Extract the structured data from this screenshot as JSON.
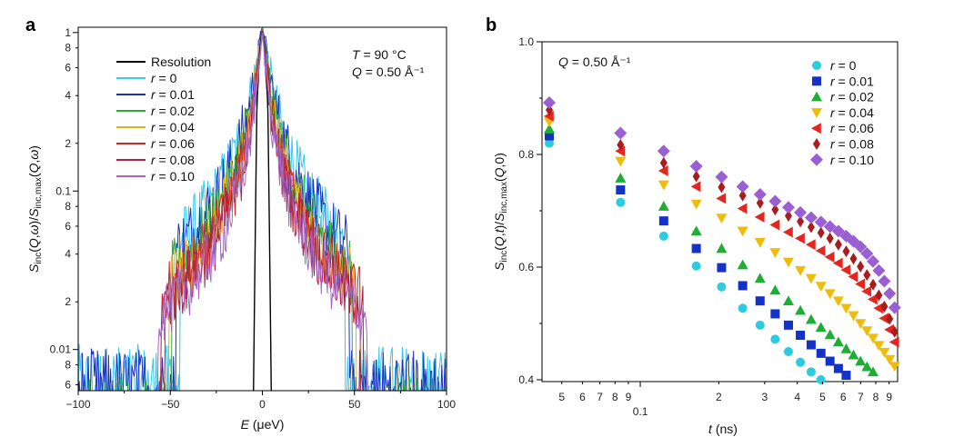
{
  "chart_data": [
    {
      "panel": "a",
      "type": "line",
      "title": "",
      "xlabel": "E (μeV)",
      "ylabel": "S_inc(Q,ω)/S_inc,max(Q,ω)",
      "xlim": [
        -100,
        100
      ],
      "ylim": [
        0.0055,
        1.08
      ],
      "yscale": "log",
      "grid": false,
      "x_ticks": [
        -100,
        -50,
        0,
        50,
        100
      ],
      "x_tick_labels": [
        "−100",
        "−50",
        "0",
        "50",
        "100"
      ],
      "y_major_ticks": [
        0.01,
        0.1,
        1
      ],
      "y_major_labels": [
        "0.01",
        "0.1",
        "1"
      ],
      "y_minor_ticks": [
        0.006,
        0.008,
        0.02,
        0.04,
        0.06,
        0.08,
        0.2,
        0.4,
        0.6,
        0.8
      ],
      "y_minor_labels": [
        "6",
        "8",
        "2",
        "4",
        "6",
        "8",
        "2",
        "4",
        "6",
        "8"
      ],
      "annotations": {
        "temperature": "T = 90 °C",
        "q": "Q = 0.50 Å⁻¹"
      },
      "legend_position": "upper-left",
      "series": [
        {
          "name": "Resolution",
          "color": "#000000",
          "hwhm": 1.6,
          "floor": 1e-05,
          "noise": 0
        },
        {
          "name": "r = 0",
          "color": "#38c8e8",
          "hwhm": 4.6,
          "floor": 0.0035,
          "noise": 0.55
        },
        {
          "name": "r = 0.01",
          "color": "#1c2fbd",
          "hwhm": 4.4,
          "floor": 0.0033,
          "noise": 0.55
        },
        {
          "name": "r = 0.02",
          "color": "#2fa83a",
          "hwhm": 3.7,
          "floor": 0.0022,
          "noise": 0.5
        },
        {
          "name": "r = 0.04",
          "color": "#e2b318",
          "hwhm": 3.3,
          "floor": 0.0018,
          "noise": 0.5
        },
        {
          "name": "r = 0.06",
          "color": "#cc2a22",
          "hwhm": 3.0,
          "floor": 0.0014,
          "noise": 0.5
        },
        {
          "name": "r = 0.08",
          "color": "#b02040",
          "hwhm": 2.8,
          "floor": 0.0012,
          "noise": 0.5
        },
        {
          "name": "r = 0.10",
          "color": "#a468c4",
          "hwhm": 2.6,
          "floor": 0.001,
          "noise": 0.5
        }
      ]
    },
    {
      "panel": "b",
      "type": "scatter",
      "title": "",
      "xlabel": "t (ns)",
      "ylabel": "S_inc(Q,t)/S_inc,max(Q,0)",
      "xlim": [
        0.042,
        0.97
      ],
      "ylim": [
        0.39,
        1.0
      ],
      "xscale": "log",
      "grid": false,
      "x_major_ticks": [
        0.1
      ],
      "x_major_labels": [
        "0.1"
      ],
      "x_minor_ticks": [
        0.05,
        0.06,
        0.07,
        0.08,
        0.09,
        0.2,
        0.3,
        0.4,
        0.5,
        0.6,
        0.7,
        0.8,
        0.9
      ],
      "x_minor_labels": [
        "5",
        "6",
        "7",
        "8",
        "9",
        "2",
        "3",
        "4",
        "5",
        "6",
        "7",
        "8",
        "9"
      ],
      "y_ticks": [
        0.4,
        0.6,
        0.8,
        1.0
      ],
      "y_tick_labels": [
        "0.4",
        "0.6",
        "0.8",
        "1.0"
      ],
      "annotations": {
        "q": "Q = 0.50 Å⁻¹"
      },
      "legend_position": "upper-right",
      "x": [
        0.042,
        0.084,
        0.123,
        0.164,
        0.205,
        0.247,
        0.288,
        0.329,
        0.37,
        0.411,
        0.452,
        0.493,
        0.534,
        0.575,
        0.616,
        0.657,
        0.699,
        0.74,
        0.781,
        0.822,
        0.863,
        0.904,
        0.945
      ],
      "series": [
        {
          "name": "r = 0",
          "marker": "circle",
          "color": "#2ccce0",
          "values": [
            0.82,
            0.715,
            0.655,
            0.602,
            0.565,
            0.527,
            0.497,
            0.472,
            0.45,
            0.431,
            0.414,
            0.4
          ]
        },
        {
          "name": "r = 0.01",
          "marker": "square",
          "color": "#1431c8",
          "values": [
            0.833,
            0.737,
            0.682,
            0.633,
            0.599,
            0.567,
            0.54,
            0.517,
            0.497,
            0.479,
            0.462,
            0.447,
            0.433,
            0.42,
            0.408
          ]
        },
        {
          "name": "r = 0.02",
          "marker": "triangle-up",
          "color": "#1fae35",
          "values": [
            0.845,
            0.758,
            0.708,
            0.664,
            0.633,
            0.604,
            0.58,
            0.559,
            0.54,
            0.523,
            0.507,
            0.493,
            0.48,
            0.467,
            0.455,
            0.444,
            0.433,
            0.423,
            0.414
          ]
        },
        {
          "name": "r = 0.04",
          "marker": "triangle-down",
          "color": "#efbc0a",
          "values": [
            0.858,
            0.788,
            0.746,
            0.712,
            0.687,
            0.664,
            0.644,
            0.626,
            0.609,
            0.594,
            0.58,
            0.566,
            0.553,
            0.54,
            0.527,
            0.514,
            0.5,
            0.487,
            0.474,
            0.461,
            0.449,
            0.436,
            0.424
          ]
        },
        {
          "name": "r = 0.06",
          "marker": "triangle-left",
          "color": "#e32620",
          "values": [
            0.868,
            0.806,
            0.771,
            0.743,
            0.722,
            0.704,
            0.689,
            0.675,
            0.662,
            0.651,
            0.64,
            0.629,
            0.618,
            0.607,
            0.595,
            0.583,
            0.57,
            0.557,
            0.543,
            0.527,
            0.509,
            0.489,
            0.467
          ]
        },
        {
          "name": "r = 0.08",
          "marker": "diamond-thin",
          "color": "#a81c1c",
          "values": [
            0.879,
            0.817,
            0.785,
            0.761,
            0.742,
            0.727,
            0.714,
            0.702,
            0.691,
            0.681,
            0.671,
            0.661,
            0.651,
            0.64,
            0.628,
            0.615,
            0.601,
            0.586,
            0.569,
            0.55,
            0.53,
            0.508,
            0.485
          ]
        },
        {
          "name": "r = 0.10",
          "marker": "diamond",
          "color": "#9a5fd2",
          "values": [
            0.892,
            0.838,
            0.806,
            0.779,
            0.76,
            0.743,
            0.729,
            0.717,
            0.706,
            0.697,
            0.688,
            0.68,
            0.672,
            0.664,
            0.655,
            0.646,
            0.636,
            0.624,
            0.61,
            0.594,
            0.575,
            0.553,
            0.528
          ]
        }
      ]
    }
  ]
}
